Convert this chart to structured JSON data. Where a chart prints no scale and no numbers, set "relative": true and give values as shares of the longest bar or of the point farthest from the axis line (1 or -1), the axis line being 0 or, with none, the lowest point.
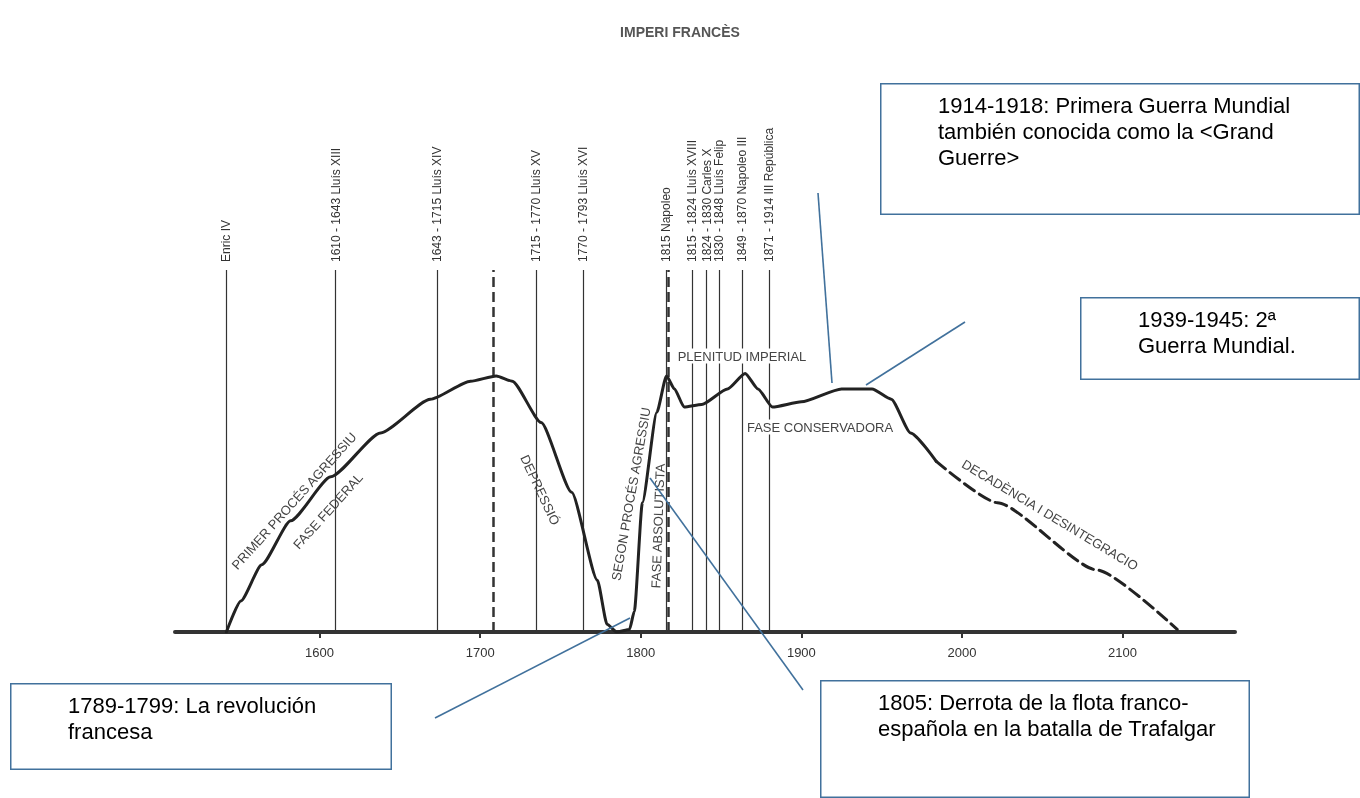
{
  "chart_data": {
    "type": "line",
    "title": "IMPERI FRANCÈS",
    "relative": true,
    "marker": "none",
    "grid": false,
    "xlim": [
      1510,
      2170
    ],
    "xticks": [
      1600,
      1700,
      1800,
      1900,
      2000,
      2100
    ],
    "series": [
      {
        "color": "#222222",
        "line_style": "solid",
        "x": [
          1542,
          1551,
          1564,
          1582,
          1607,
          1638,
          1669,
          1694,
          1710,
          1720,
          1738,
          1757,
          1773,
          1779,
          1785,
          1793,
          1796,
          1801,
          1810,
          1816,
          1821,
          1827,
          1838,
          1854,
          1865,
          1873,
          1882,
          1900,
          1925,
          1944,
          1956,
          1968,
          1984
        ],
        "values": [
          0,
          0.12,
          0.26,
          0.43,
          0.6,
          0.77,
          0.9,
          0.97,
          0.99,
          0.97,
          0.81,
          0.54,
          0.2,
          0.03,
          0,
          0.01,
          0.08,
          0.5,
          0.85,
          0.99,
          0.94,
          0.87,
          0.88,
          0.94,
          1,
          0.94,
          0.87,
          0.89,
          0.94,
          0.94,
          0.9,
          0.77,
          0.66
        ]
      },
      {
        "color": "#222222",
        "line_style": "dashed",
        "x": [
          1984,
          2022,
          2084,
          2134
        ],
        "values": [
          0.66,
          0.5,
          0.24,
          0.01
        ]
      }
    ],
    "ref_lines": [
      {
        "axis": "x",
        "value": 1542,
        "label": "Enric IV"
      },
      {
        "axis": "x",
        "value": 1610,
        "label": "1610 - 1643 Lluís XIII"
      },
      {
        "axis": "x",
        "value": 1673,
        "label": "1643 - 1715 Lluís XIV"
      },
      {
        "axis": "x",
        "value": 1735,
        "label": "1715 - 1770 Lluís XV"
      },
      {
        "axis": "x",
        "value": 1764,
        "label": "1770 - 1793 Lluís XVI"
      },
      {
        "axis": "x",
        "value": 1816,
        "label": "1815 Napoleo"
      },
      {
        "axis": "x",
        "value": 1832,
        "label": "1815 - 1824 Lluís XVIII"
      },
      {
        "axis": "x",
        "value": 1841,
        "label": "1824 - 1830 Carles X"
      },
      {
        "axis": "x",
        "value": 1849,
        "label": "1830 - 1848 Lluís Felip"
      },
      {
        "axis": "x",
        "value": 1863,
        "label": "1849 - 1870 Napoleo III"
      },
      {
        "axis": "x",
        "value": 1880,
        "label": "1871 - 1914 III República"
      },
      {
        "axis": "x",
        "value": 1708,
        "line_style": "dashed"
      },
      {
        "axis": "x",
        "value": 1817,
        "line_style": "dashed"
      }
    ],
    "annotations": [
      "PRIMER PROCÉS AGRESSIU",
      "FASE FEDERAL",
      "DEPRESSIÓ",
      "SEGON PROCÉS AGRESSIU",
      "FASE ABSOLUTISTA",
      "PLENITUD IMPERIAL",
      "FASE CONSERVADORA",
      "DECADÈNCIA I DESINTEGRACIO",
      "1914-1918: Primera Guerra Mundial también conocida como la <Grand Guerre>",
      "1939-1945: 2ª Guerra Mundial.",
      "1789-1799: La revolución francesa",
      "1805: Derrota de la flota franco-española en la batalla de Trafalgar"
    ]
  }
}
